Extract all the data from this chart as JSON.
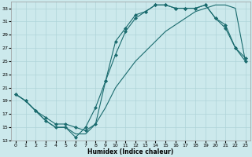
{
  "title": "",
  "xlabel": "Humidex (Indice chaleur)",
  "background_color": "#cce9ec",
  "grid_color": "#aed4d8",
  "line_color": "#1a6b6e",
  "xlim": [
    -0.5,
    23.5
  ],
  "ylim": [
    13,
    34
  ],
  "yticks": [
    13,
    15,
    17,
    19,
    21,
    23,
    25,
    27,
    29,
    31,
    33
  ],
  "xticks": [
    0,
    1,
    2,
    3,
    4,
    5,
    6,
    7,
    8,
    9,
    10,
    11,
    12,
    13,
    14,
    15,
    16,
    17,
    18,
    19,
    20,
    21,
    22,
    23
  ],
  "line1_x": [
    0,
    1,
    2,
    3,
    4,
    5,
    6,
    7,
    8,
    9,
    10,
    11,
    12,
    13,
    14,
    15,
    16,
    17,
    18,
    19,
    20,
    21,
    22,
    23
  ],
  "line1_y": [
    20.0,
    19.0,
    17.5,
    16.0,
    15.0,
    15.0,
    13.5,
    15.0,
    18.0,
    22.0,
    28.0,
    30.0,
    32.0,
    32.5,
    33.5,
    33.5,
    33.0,
    33.0,
    33.0,
    33.5,
    31.5,
    30.0,
    27.0,
    25.0
  ],
  "line2_x": [
    0,
    1,
    2,
    3,
    4,
    5,
    6,
    7,
    8,
    9,
    10,
    11,
    12,
    13,
    14,
    15,
    16,
    17,
    18,
    19,
    20,
    21,
    22,
    23
  ],
  "line2_y": [
    20.0,
    19.0,
    17.5,
    16.5,
    15.5,
    15.5,
    15.0,
    14.5,
    15.5,
    22.0,
    26.0,
    29.5,
    31.5,
    32.5,
    33.5,
    33.5,
    33.0,
    33.0,
    33.0,
    33.5,
    31.5,
    30.5,
    27.0,
    25.5
  ],
  "line3_x": [
    0,
    1,
    2,
    3,
    4,
    5,
    6,
    7,
    8,
    9,
    10,
    11,
    12,
    13,
    14,
    15,
    16,
    17,
    18,
    19,
    20,
    21,
    22,
    23
  ],
  "line3_y": [
    20.0,
    19.0,
    17.5,
    16.0,
    15.0,
    15.0,
    14.0,
    14.0,
    15.5,
    18.0,
    21.0,
    23.0,
    25.0,
    26.5,
    28.0,
    29.5,
    30.5,
    31.5,
    32.5,
    33.0,
    33.5,
    33.5,
    33.0,
    25.0
  ]
}
